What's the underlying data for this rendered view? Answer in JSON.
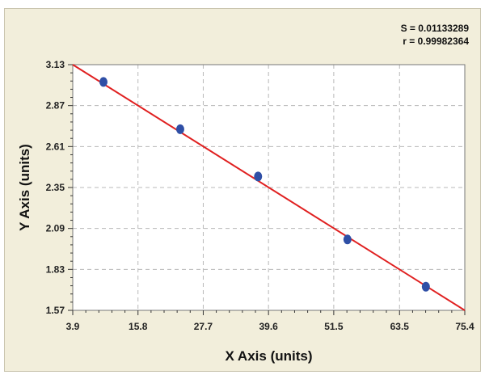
{
  "stats": {
    "s_text": "S = 0.01133289",
    "r_text": "r = 0.99982364"
  },
  "chart_data": {
    "type": "scatter",
    "title": "",
    "xlabel": "X Axis (units)",
    "ylabel": "Y Axis (units)",
    "xlim": [
      3.9,
      75.4
    ],
    "ylim": [
      1.57,
      3.13
    ],
    "xticks": [
      3.9,
      15.8,
      27.7,
      39.6,
      51.5,
      63.5,
      75.4
    ],
    "xtick_labels": [
      "3.9",
      "15.8",
      "27.7",
      "39.6",
      "51.5",
      "63.5",
      "75.4"
    ],
    "yticks": [
      1.57,
      1.83,
      2.09,
      2.35,
      2.61,
      2.87,
      3.13
    ],
    "ytick_labels": [
      "1.57",
      "1.83",
      "2.09",
      "2.35",
      "2.61",
      "2.87",
      "3.13"
    ],
    "grid": true,
    "points": [
      {
        "x": 9.5,
        "y": 3.02
      },
      {
        "x": 23.5,
        "y": 2.72
      },
      {
        "x": 37.7,
        "y": 2.42
      },
      {
        "x": 54.0,
        "y": 2.02
      },
      {
        "x": 68.3,
        "y": 1.72
      }
    ],
    "fit_line": {
      "x": [
        3.9,
        75.4
      ],
      "y": [
        3.13,
        1.57
      ]
    },
    "colors": {
      "points": "#2f4fa6",
      "fit_line": "#e02020",
      "grid": "#b8b8b8",
      "plot_background": "#ffffff",
      "frame_background": "#f2eedb"
    }
  }
}
